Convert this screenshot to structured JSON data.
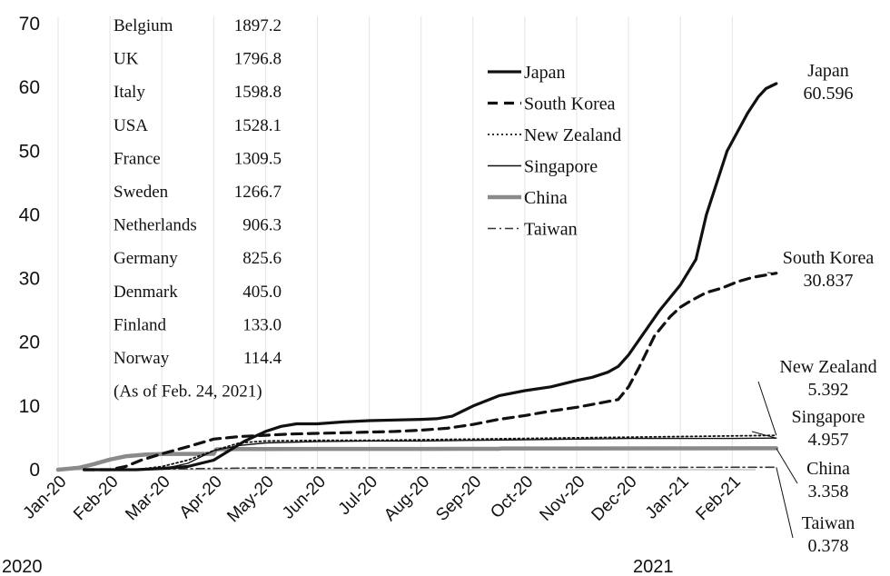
{
  "chart_data": {
    "type": "line",
    "title": "",
    "xlabel": "",
    "ylabel": "",
    "ylim": [
      0,
      70
    ],
    "yticks": [
      0,
      10,
      20,
      30,
      40,
      50,
      60,
      70
    ],
    "xticks": [
      "Jan-20",
      "Feb-20",
      "Mar-20",
      "Apr-20",
      "May-20",
      "Jun-20",
      "Jul-20",
      "Aug-20",
      "Sep-20",
      "Oct-20",
      "Nov-20",
      "Dec-20",
      "Jan-21",
      "Feb-21"
    ],
    "year_labels": [
      "2020",
      "2021"
    ],
    "grid": "vertical",
    "legend_position": "top-right",
    "series": [
      {
        "name": "Japan",
        "style": "solid-thick",
        "color": "#111111",
        "x": [
          0.5,
          1.0,
          1.5,
          2.0,
          2.5,
          3.0,
          3.3,
          3.6,
          4.0,
          4.3,
          4.6,
          5.0,
          5.5,
          6.0,
          6.5,
          7.0,
          7.3,
          7.6,
          8.0,
          8.5,
          9.0,
          9.5,
          10.0,
          10.3,
          10.6,
          10.8,
          11.0,
          11.3,
          11.6,
          12.0,
          12.3,
          12.5,
          12.7,
          12.9,
          13.1,
          13.3,
          13.5,
          13.65,
          13.85
        ],
        "y": [
          0,
          0,
          0,
          0.2,
          0.5,
          1.5,
          3.0,
          4.5,
          6.0,
          6.8,
          7.2,
          7.2,
          7.5,
          7.7,
          7.8,
          7.9,
          8.0,
          8.4,
          10.0,
          11.6,
          12.4,
          13.0,
          14.0,
          14.5,
          15.3,
          16.2,
          18.0,
          21.5,
          25.0,
          29.0,
          33.0,
          40.0,
          45.0,
          50.0,
          53.0,
          56.0,
          58.5,
          59.8,
          60.596
        ]
      },
      {
        "name": "South Korea",
        "style": "dashed-thick",
        "color": "#111111",
        "x": [
          0.5,
          1.0,
          1.3,
          1.6,
          2.0,
          2.5,
          3.0,
          3.5,
          4.0,
          4.5,
          5.0,
          5.5,
          6.0,
          6.5,
          7.0,
          7.5,
          8.0,
          8.5,
          9.0,
          9.5,
          10.0,
          10.4,
          10.8,
          11.0,
          11.2,
          11.5,
          11.8,
          12.0,
          12.2,
          12.5,
          12.8,
          13.1,
          13.4,
          13.85
        ],
        "y": [
          0,
          0,
          0.5,
          1.5,
          2.5,
          3.6,
          4.8,
          5.2,
          5.4,
          5.6,
          5.7,
          5.8,
          5.9,
          6.0,
          6.2,
          6.5,
          7.1,
          7.9,
          8.5,
          9.2,
          9.8,
          10.4,
          11.0,
          13.0,
          16.0,
          21.0,
          24.0,
          25.5,
          26.5,
          27.8,
          28.5,
          29.5,
          30.2,
          30.837
        ]
      },
      {
        "name": "New Zealand",
        "style": "dotted",
        "color": "#111111",
        "x": [
          1.5,
          2.0,
          2.5,
          3.0,
          3.5,
          4.0,
          5.0,
          6.0,
          7.0,
          8.0,
          9.0,
          10.0,
          11.0,
          12.0,
          13.0,
          13.85
        ],
        "y": [
          0,
          0.5,
          1.5,
          3.0,
          4.2,
          4.5,
          4.6,
          4.6,
          4.7,
          4.8,
          4.9,
          5.0,
          5.1,
          5.2,
          5.3,
          5.392
        ]
      },
      {
        "name": "Singapore",
        "style": "solid-thin",
        "color": "#111111",
        "x": [
          0.5,
          1.0,
          2.0,
          2.5,
          3.0,
          3.5,
          4.0,
          5.0,
          6.0,
          7.0,
          8.0,
          9.0,
          10.0,
          11.0,
          12.0,
          13.0,
          13.85
        ],
        "y": [
          0,
          0,
          0.1,
          1.0,
          3.0,
          3.8,
          4.2,
          4.4,
          4.5,
          4.5,
          4.6,
          4.7,
          4.8,
          4.9,
          4.9,
          4.9,
          4.957
        ]
      },
      {
        "name": "China",
        "style": "solid-grey",
        "color": "#8a8a8a",
        "x": [
          0,
          0.4,
          0.7,
          1.0,
          1.3,
          1.7,
          2.0,
          3.0,
          3.05,
          3.5,
          4.0,
          5.0,
          6.0,
          7.0,
          8.0,
          8.5,
          8.55,
          10.0,
          12.0,
          13.85
        ],
        "y": [
          0,
          0.3,
          0.9,
          1.6,
          2.1,
          2.4,
          2.45,
          2.5,
          3.2,
          3.25,
          3.25,
          3.26,
          3.26,
          3.27,
          3.28,
          3.28,
          3.33,
          3.34,
          3.35,
          3.358
        ]
      },
      {
        "name": "Taiwan",
        "style": "dash-dot",
        "color": "#333333",
        "x": [
          1.0,
          2.0,
          3.0,
          4.0,
          6.0,
          8.0,
          10.0,
          12.0,
          13.85
        ],
        "y": [
          0,
          0.1,
          0.2,
          0.3,
          0.3,
          0.33,
          0.35,
          0.37,
          0.378
        ]
      }
    ],
    "end_labels": [
      {
        "name": "Japan",
        "value": "60.596"
      },
      {
        "name": "South Korea",
        "value": "30.837"
      },
      {
        "name": "New Zealand",
        "value": "5.392"
      },
      {
        "name": "Singapore",
        "value": "4.957"
      },
      {
        "name": "China",
        "value": "3.358"
      },
      {
        "name": "Taiwan",
        "value": "0.378"
      }
    ],
    "reference_table": {
      "rows": [
        {
          "country": "Belgium",
          "value": "1897.2"
        },
        {
          "country": "UK",
          "value": "1796.8"
        },
        {
          "country": "Italy",
          "value": "1598.8"
        },
        {
          "country": "USA",
          "value": "1528.1"
        },
        {
          "country": "France",
          "value": "1309.5"
        },
        {
          "country": "Sweden",
          "value": "1266.7"
        },
        {
          "country": "Netherlands",
          "value": "906.3"
        },
        {
          "country": "Germany",
          "value": "825.6"
        },
        {
          "country": "Denmark",
          "value": "405.0"
        },
        {
          "country": "Finland",
          "value": "133.0"
        },
        {
          "country": "Norway",
          "value": "114.4"
        }
      ],
      "note": "(As of Feb. 24, 2021)"
    }
  }
}
